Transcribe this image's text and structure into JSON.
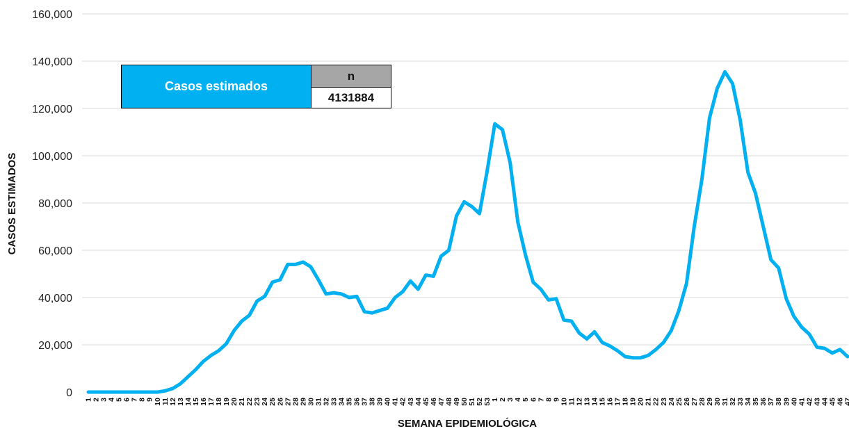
{
  "summary": {
    "label": "Casos estimados",
    "header": "n",
    "value": "4131884"
  },
  "chart_data": {
    "type": "line",
    "title": "",
    "xlabel": "SEMANA EPIDEMIOLÓGICA",
    "ylabel": "CASOS ESTIMADOS",
    "ylim": [
      0,
      160000
    ],
    "yticks": [
      "0",
      "20,000",
      "40,000",
      "60,000",
      "80,000",
      "100,000",
      "120,000",
      "140,000",
      "160,000"
    ],
    "grid": true,
    "line_color": "#00b0f0",
    "categories": [
      "1",
      "2",
      "3",
      "4",
      "5",
      "6",
      "7",
      "8",
      "9",
      "10",
      "11",
      "12",
      "13",
      "14",
      "15",
      "16",
      "17",
      "18",
      "19",
      "20",
      "21",
      "22",
      "23",
      "24",
      "25",
      "26",
      "27",
      "28",
      "29",
      "30",
      "31",
      "32",
      "33",
      "34",
      "35",
      "36",
      "37",
      "38",
      "39",
      "40",
      "41",
      "42",
      "43",
      "44",
      "45",
      "46",
      "47",
      "48",
      "49",
      "50",
      "51",
      "52",
      "53",
      "1",
      "2",
      "3",
      "4",
      "5",
      "6",
      "7",
      "8",
      "9",
      "10",
      "11",
      "12",
      "13",
      "14",
      "15",
      "16",
      "17",
      "18",
      "19",
      "20",
      "21",
      "22",
      "23",
      "24",
      "25",
      "26",
      "27",
      "28",
      "29",
      "30",
      "31",
      "32",
      "33",
      "34",
      "35",
      "36",
      "37",
      "38",
      "39",
      "40",
      "41",
      "42",
      "43",
      "44",
      "45",
      "46",
      "47"
    ],
    "values": [
      0,
      0,
      0,
      0,
      0,
      0,
      0,
      0,
      0,
      0,
      500,
      1500,
      3500,
      6500,
      9500,
      13000,
      15500,
      17500,
      20500,
      26000,
      30000,
      32500,
      38500,
      40500,
      46500,
      47500,
      54000,
      54000,
      55000,
      53000,
      47500,
      41500,
      42000,
      41500,
      40000,
      40500,
      34000,
      33500,
      34500,
      35500,
      40000,
      42500,
      47000,
      43500,
      49500,
      49000,
      57500,
      60000,
      74500,
      80500,
      78500,
      75500,
      93500,
      113500,
      111000,
      97000,
      72000,
      58000,
      46500,
      43500,
      39000,
      39500,
      30500,
      30000,
      25000,
      22500,
      25500,
      21000,
      19500,
      17500,
      15000,
      14500,
      14500,
      15500,
      18000,
      21000,
      26000,
      34500,
      46000,
      70000,
      90000,
      116000,
      128500,
      135500,
      130500,
      115000,
      93000,
      84000,
      70000,
      56000,
      52500,
      39500,
      32000,
      27500,
      24500,
      19000,
      18500,
      16500,
      18000,
      15000
    ]
  }
}
